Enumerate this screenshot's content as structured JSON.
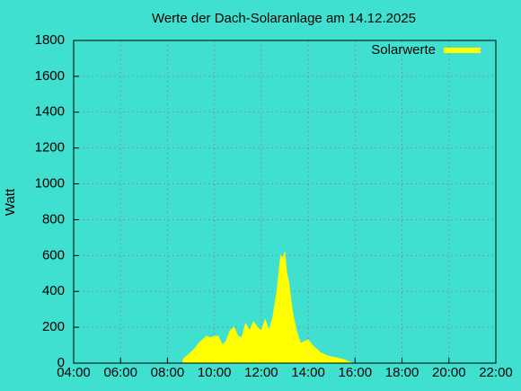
{
  "chart_data": {
    "type": "area",
    "title": "Werte der Dach-Solaranlage am 14.12.2025",
    "y_label": "Watt",
    "x_is_time": true,
    "xlim": [
      "04:00",
      "22:00"
    ],
    "xticks": [
      "04:00",
      "06:00",
      "08:00",
      "10:00",
      "12:00",
      "14:00",
      "16:00",
      "18:00",
      "20:00",
      "22:00"
    ],
    "ylim": [
      0,
      1800
    ],
    "yticks": [
      0,
      200,
      400,
      600,
      800,
      1000,
      1200,
      1400,
      1600,
      1800
    ],
    "grid": true,
    "legend": "top-right",
    "series": [
      {
        "name": "Solarwerte",
        "color": "#ffff00",
        "x": [
          "08:40",
          "08:50",
          "09:00",
          "09:10",
          "09:20",
          "09:30",
          "09:40",
          "09:50",
          "10:00",
          "10:10",
          "10:20",
          "10:30",
          "10:40",
          "10:50",
          "11:00",
          "11:10",
          "11:20",
          "11:30",
          "11:40",
          "11:50",
          "12:00",
          "12:10",
          "12:20",
          "12:30",
          "12:40",
          "12:50",
          "12:55",
          "13:00",
          "13:05",
          "13:10",
          "13:20",
          "13:30",
          "13:40",
          "13:50",
          "14:00",
          "14:10",
          "14:20",
          "14:30",
          "14:40",
          "14:50",
          "15:00",
          "15:10",
          "15:20",
          "15:30",
          "15:40",
          "15:50"
        ],
        "values": [
          20,
          40,
          60,
          80,
          110,
          130,
          150,
          140,
          150,
          150,
          100,
          120,
          180,
          200,
          150,
          140,
          220,
          180,
          230,
          200,
          180,
          240,
          180,
          260,
          400,
          600,
          580,
          620,
          500,
          450,
          280,
          180,
          110,
          120,
          130,
          100,
          80,
          60,
          50,
          40,
          35,
          30,
          25,
          20,
          10,
          3
        ]
      }
    ]
  }
}
